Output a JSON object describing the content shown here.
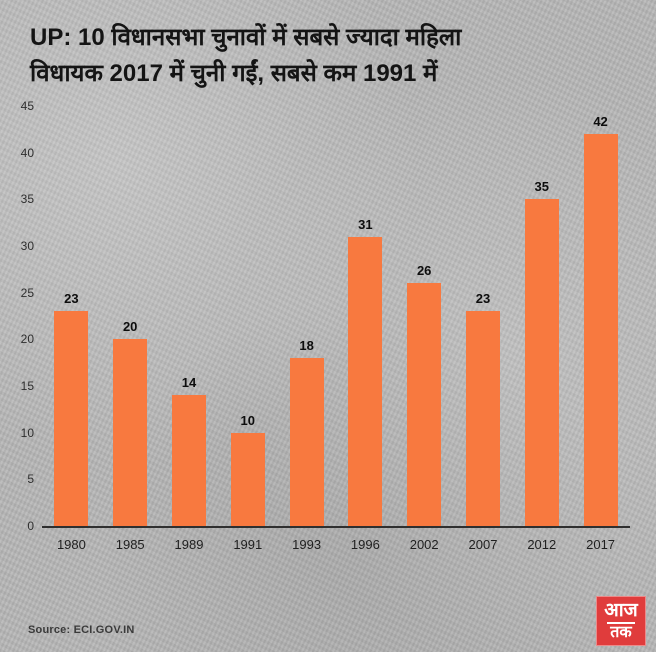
{
  "header": {
    "line1": "UP: 10 विधानसभा चुनावों में सबसे ज्यादा महिला",
    "line2": "विधायक 2017 में चुनी गईं, सबसे कम 1991 में"
  },
  "chart_data": {
    "type": "bar",
    "title": "UP: 10 विधानसभा चुनावों में सबसे ज्यादा महिला विधायक 2017 में चुनी गईं, सबसे कम 1991 में",
    "categories": [
      "1980",
      "1985",
      "1989",
      "1991",
      "1993",
      "1996",
      "2002",
      "2007",
      "2012",
      "2017"
    ],
    "values": [
      23,
      20,
      14,
      10,
      18,
      31,
      26,
      23,
      35,
      42
    ],
    "xlabel": "",
    "ylabel": "",
    "ylim": [
      0,
      45
    ],
    "yticks": [
      0,
      5,
      10,
      15,
      20,
      25,
      30,
      35,
      40,
      45
    ],
    "bar_color": "#F8793F",
    "grid": false,
    "legend": false,
    "value_labels": true
  },
  "footer": {
    "source": "Source: ECI.GOV.IN",
    "logo_line1": "आज",
    "logo_line2": "तक",
    "logo_color": "#E03C3C"
  }
}
